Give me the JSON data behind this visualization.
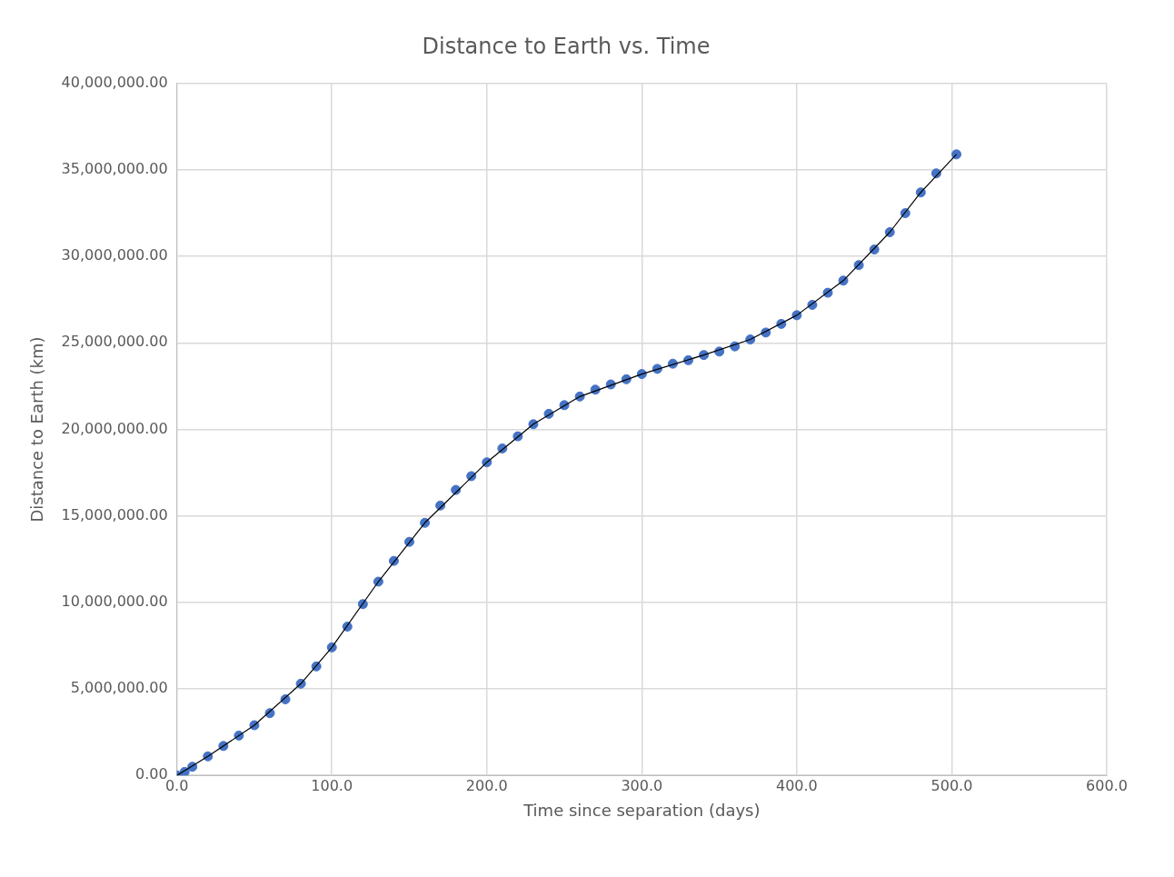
{
  "chart_data": {
    "type": "scatter",
    "title": "Distance to Earth vs. Time",
    "xlabel": "Time since separation (days)",
    "ylabel": "Distance to Earth (km)",
    "xlim": [
      0,
      600
    ],
    "xticks": [
      {
        "value": 0,
        "label": "0.0"
      },
      {
        "value": 100,
        "label": "100.0"
      },
      {
        "value": 200,
        "label": "200.0"
      },
      {
        "value": 300,
        "label": "300.0"
      },
      {
        "value": 400,
        "label": "400.0"
      },
      {
        "value": 500,
        "label": "500.0"
      },
      {
        "value": 600,
        "label": "600.0"
      }
    ],
    "ylim": [
      0,
      40000000
    ],
    "yticks": [
      {
        "value": 0,
        "label": "0.00"
      },
      {
        "value": 5000000,
        "label": "5,000,000.00"
      },
      {
        "value": 10000000,
        "label": "10,000,000.00"
      },
      {
        "value": 15000000,
        "label": "15,000,000.00"
      },
      {
        "value": 20000000,
        "label": "20,000,000.00"
      },
      {
        "value": 25000000,
        "label": "25,000,000.00"
      },
      {
        "value": 30000000,
        "label": "30,000,000.00"
      },
      {
        "value": 35000000,
        "label": "35,000,000.00"
      },
      {
        "value": 40000000,
        "label": "40,000,000.00"
      }
    ],
    "grid": true,
    "legend": false,
    "series": [
      {
        "type": "scatter",
        "marker": "circle",
        "color": "#4472c4",
        "x": [
          0,
          5,
          10,
          20,
          30,
          40,
          50,
          60,
          70,
          80,
          90,
          100,
          110,
          120,
          130,
          140,
          150,
          160,
          170,
          180,
          190,
          200,
          210,
          220,
          230,
          240,
          250,
          260,
          270,
          280,
          290,
          300,
          310,
          320,
          330,
          340,
          350,
          360,
          370,
          380,
          390,
          400,
          410,
          420,
          430,
          440,
          450,
          460,
          470,
          480,
          490,
          503
        ],
        "values": [
          0,
          200000,
          500000,
          1100000,
          1700000,
          2300000,
          2900000,
          3600000,
          4400000,
          5300000,
          6300000,
          7400000,
          8600000,
          9900000,
          11200000,
          12400000,
          13500000,
          14600000,
          15600000,
          16500000,
          17300000,
          18100000,
          18900000,
          19600000,
          20300000,
          20900000,
          21400000,
          21900000,
          22300000,
          22600000,
          22900000,
          23200000,
          23500000,
          23800000,
          24000000,
          24300000,
          24500000,
          24800000,
          25200000,
          25600000,
          26100000,
          26600000,
          27200000,
          27900000,
          28600000,
          29500000,
          30400000,
          31400000,
          32500000,
          33700000,
          34800000,
          35900000
        ]
      },
      {
        "type": "line",
        "marker": "none",
        "line_style": "solid",
        "color": "#000000",
        "x": [
          0,
          20,
          50,
          80,
          100,
          130,
          160,
          200,
          230,
          260,
          300,
          340,
          370,
          400,
          430,
          460,
          480,
          503
        ],
        "values": [
          0,
          1100000,
          2900000,
          5300000,
          7400000,
          11200000,
          14600000,
          18100000,
          20300000,
          21900000,
          23200000,
          24300000,
          25200000,
          26600000,
          28600000,
          31400000,
          33700000,
          35900000
        ]
      }
    ]
  }
}
